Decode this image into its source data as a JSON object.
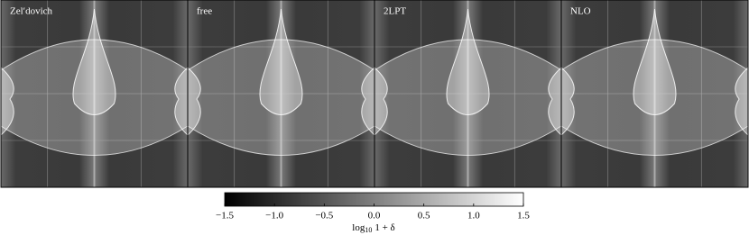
{
  "panels": [
    "Zel′dovich",
    "free",
    "2LPT",
    "NLO"
  ],
  "colorbar": {
    "lim": [
      -1.5,
      1.5
    ],
    "ticks": [
      {
        "value": -1.5,
        "label": "−1.5"
      },
      {
        "value": -1.0,
        "label": "−1.0"
      },
      {
        "value": -0.5,
        "label": "−0.5"
      },
      {
        "value": 0,
        "label": "0.0"
      },
      0.5,
      {
        "value": 1.0,
        "label": "1.0"
      },
      1.5
    ],
    "label": {
      "base": "log",
      "sub": "10",
      "rest": "1 + δ"
    }
  }
}
